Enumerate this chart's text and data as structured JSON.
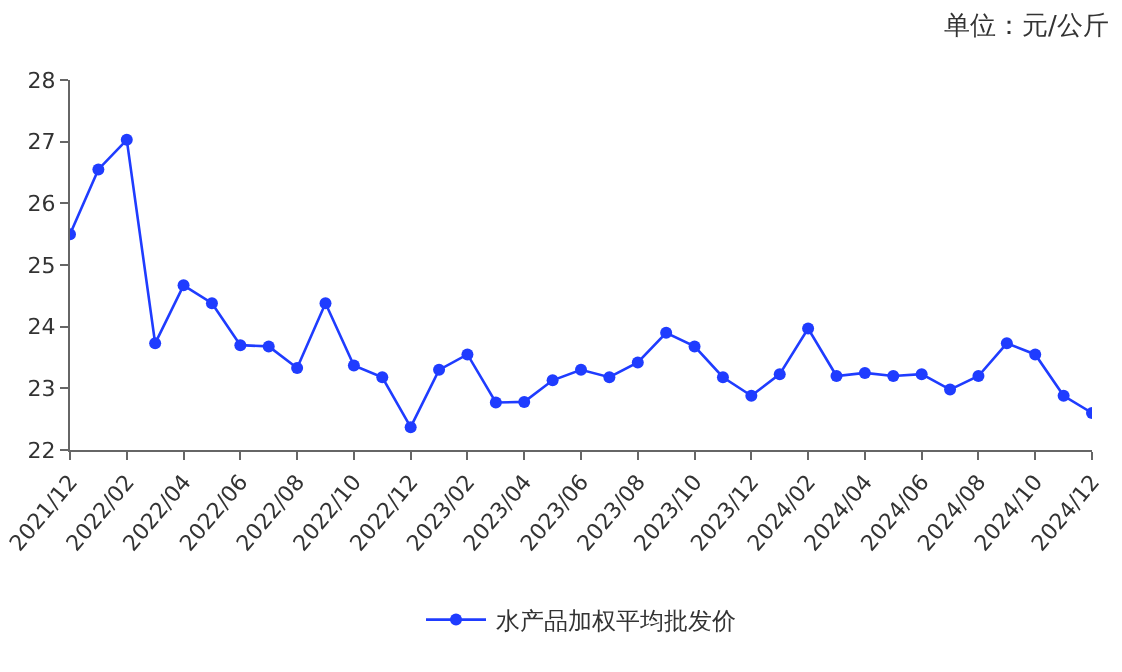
{
  "chart_data": {
    "type": "line",
    "annotations": [
      "单位：元/公斤"
    ],
    "categories": [
      "2021/12",
      null,
      "2022/02",
      null,
      "2022/04",
      null,
      "2022/06",
      null,
      "2022/08",
      null,
      "2022/10",
      null,
      "2022/12",
      null,
      "2023/02",
      null,
      "2023/04",
      null,
      "2023/06",
      null,
      "2023/08",
      null,
      "2023/10",
      null,
      "2023/12",
      null,
      "2024/02",
      null,
      "2024/04",
      null,
      "2024/06",
      null,
      "2024/08",
      null,
      "2024/10",
      null,
      "2024/12"
    ],
    "series": [
      {
        "name": "水产品加权平均批发价",
        "color": "#1f3cff",
        "values": [
          25.5,
          26.55,
          27.03,
          23.73,
          24.67,
          24.38,
          23.7,
          23.68,
          23.33,
          24.38,
          23.37,
          23.18,
          22.37,
          23.3,
          23.55,
          22.77,
          22.78,
          23.13,
          23.3,
          23.18,
          23.42,
          23.9,
          23.68,
          23.18,
          22.88,
          23.23,
          23.97,
          23.2,
          23.25,
          23.2,
          23.23,
          22.98,
          23.2,
          23.73,
          23.55,
          22.88,
          22.6
        ]
      }
    ],
    "ylim": [
      22,
      28
    ],
    "yticks": [
      22,
      23,
      24,
      25,
      26,
      27,
      28
    ],
    "grid": false,
    "legend": "bottom",
    "marker": "circle",
    "line_style": "solid"
  }
}
